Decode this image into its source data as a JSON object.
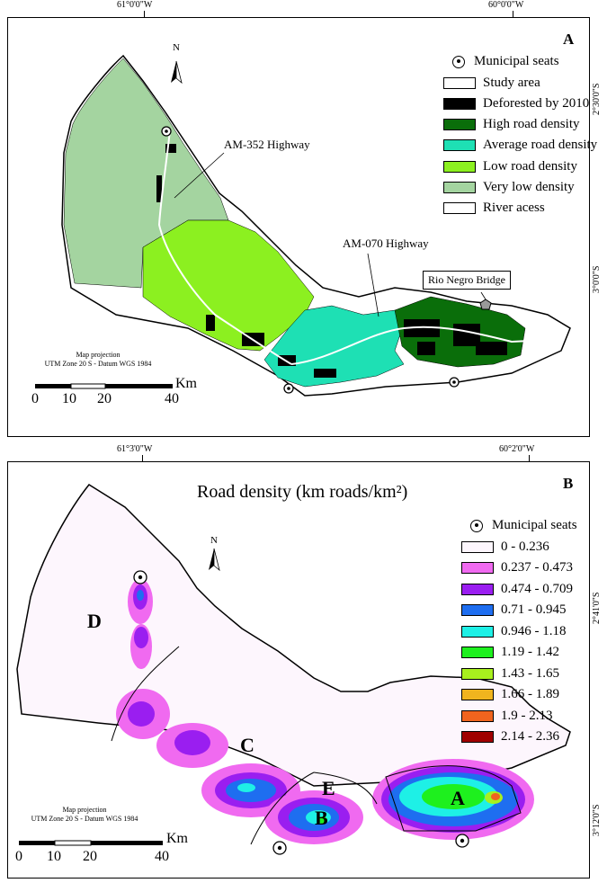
{
  "coords": {
    "a_top_left": "61°0'0\"W",
    "a_top_right": "60°0'0\"W",
    "a_right_upper": "2°30'0\"S",
    "a_right_lower": "3°0'0\"S",
    "b_top_left": "61°3'0\"W",
    "b_top_right": "60°2'0\"W",
    "b_right_upper": "2°41'0\"S",
    "b_right_lower": "3°12'0\"S"
  },
  "panel_a": {
    "letter": "A",
    "north": "N",
    "legend": [
      {
        "label": "Municipal seats",
        "symbol": "seat"
      },
      {
        "label": "Study area",
        "color": "#ffffff"
      },
      {
        "label": "Deforested by 2010",
        "color": "#000000"
      },
      {
        "label": "High road density",
        "color": "#0a6e0a"
      },
      {
        "label": "Average road density",
        "color": "#1ee0b4"
      },
      {
        "label": "Low road density",
        "color": "#8cf020"
      },
      {
        "label": "Very low density",
        "color": "#a4d4a0"
      },
      {
        "label": "River acess",
        "color": "#ffffff"
      }
    ],
    "labels": {
      "am352": "AM-352 Highway",
      "am070": "AM-070 Highway",
      "bridge": "Rio Negro Bridge"
    },
    "projection": [
      "Map projection",
      "UTM Zone 20 S - Datum WGS 1984"
    ],
    "scale": {
      "ticks": [
        "0",
        "10",
        "20",
        "40"
      ],
      "unit": "Km"
    }
  },
  "panel_b": {
    "letter": "B",
    "north": "N",
    "title": "Road density (km roads/km²)",
    "legend": [
      {
        "label": "Municipal seats",
        "symbol": "seat"
      },
      {
        "label": "0 - 0.236",
        "color": "#fdf6fd"
      },
      {
        "label": "0.237 - 0.473",
        "color": "#f06af0"
      },
      {
        "label": "0.474 - 0.709",
        "color": "#9a1ef0"
      },
      {
        "label": "0.71 - 0.945",
        "color": "#1e6ef0"
      },
      {
        "label": "0.946 - 1.18",
        "color": "#1ef0e6"
      },
      {
        "label": "1.19 - 1.42",
        "color": "#1ef01e"
      },
      {
        "label": "1.43 - 1.65",
        "color": "#a8f01e"
      },
      {
        "label": "1.66 - 1.89",
        "color": "#f0b41e"
      },
      {
        "label": "1.9 - 2.13",
        "color": "#f0641e"
      },
      {
        "label": "2.14 - 2.36",
        "color": "#a00000"
      }
    ],
    "regions": [
      "A",
      "B",
      "C",
      "D",
      "E"
    ],
    "projection": [
      "Map projection",
      "UTM Zone 20 S - Datum WGS 1984"
    ],
    "scale": {
      "ticks": [
        "0",
        "10",
        "20",
        "40"
      ],
      "unit": "Km"
    }
  }
}
